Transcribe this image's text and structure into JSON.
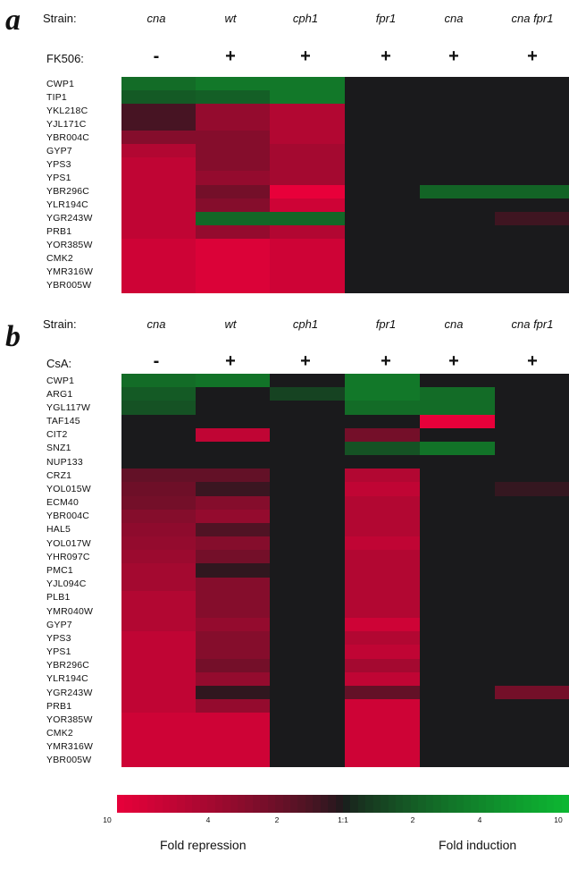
{
  "panel_a": {
    "letter": "a",
    "strain_label": "Strain:",
    "treatment_label": "FK506:",
    "strains": [
      "cna",
      "wt",
      "cph1",
      "fpr1",
      "cna",
      "cna fpr1"
    ],
    "treatments": [
      "-",
      "+",
      "+",
      "+",
      "+",
      "+"
    ],
    "genes": [
      "CWP1",
      "TIP1",
      "YKL218C",
      "YJL171C",
      "YBR004C",
      "GYP7",
      "YPS3",
      "YPS1",
      "YBR296C",
      "YLR194C",
      "YGR243W",
      "PRB1",
      "YOR385W",
      "CMK2",
      "YMR316W",
      "YBR005W"
    ],
    "values": [
      [
        2.5,
        3,
        3,
        0,
        0,
        0
      ],
      [
        1.8,
        2,
        3,
        0,
        0,
        0
      ],
      [
        -0.8,
        -3,
        -4,
        0,
        0,
        0
      ],
      [
        -0.8,
        -3,
        -4,
        0,
        0,
        0
      ],
      [
        -2.5,
        -2.5,
        -4,
        0,
        0,
        0
      ],
      [
        -4,
        -2.5,
        -3.5,
        0,
        0,
        0
      ],
      [
        -4.5,
        -2.5,
        -3.5,
        0,
        0,
        0
      ],
      [
        -4.5,
        -3,
        -3.5,
        0,
        0,
        0
      ],
      [
        -4.5,
        -2,
        -6,
        0,
        2.2,
        2.2
      ],
      [
        -4.5,
        -2.5,
        -5,
        0,
        0,
        0
      ],
      [
        -4.5,
        2.3,
        2.3,
        0,
        0,
        -0.6
      ],
      [
        -4.5,
        -3,
        -4,
        0,
        0,
        0
      ],
      [
        -5,
        -5.5,
        -5,
        0,
        0,
        0
      ],
      [
        -5,
        -5.5,
        -5,
        0,
        0,
        0
      ],
      [
        -5,
        -5.5,
        -5,
        0,
        0,
        0
      ],
      [
        -5,
        -5.5,
        -5,
        0,
        0,
        0
      ]
    ]
  },
  "panel_b": {
    "letter": "b",
    "strain_label": "Strain:",
    "treatment_label": "CsA:",
    "strains": [
      "cna",
      "wt",
      "cph1",
      "fpr1",
      "cna",
      "cna fpr1"
    ],
    "treatments": [
      "-",
      "+",
      "+",
      "+",
      "+",
      "+"
    ],
    "genes": [
      "CWP1",
      "ARG1",
      "YGL117W",
      "TAF145",
      "CIT2",
      "SNZ1",
      "NUP133",
      "CRZ1",
      "YOL015W",
      "ECM40",
      "YBR004C",
      "HAL5",
      "YOL017W",
      "YHR097C",
      "PMC1",
      "YJL094C",
      "PLB1",
      "YMR040W",
      "GYP7",
      "YPS3",
      "YPS1",
      "YBR296C",
      "YLR194C",
      "YGR243W",
      "PRB1",
      "YOR385W",
      "CMK2",
      "YMR316W",
      "YBR005W"
    ],
    "values": [
      [
        2.5,
        2.8,
        0,
        3,
        0,
        0
      ],
      [
        1.8,
        0,
        1,
        3,
        2.5,
        0
      ],
      [
        1.5,
        0,
        0,
        2.5,
        2.5,
        0
      ],
      [
        0,
        0,
        0,
        0,
        -6,
        0
      ],
      [
        0,
        -4.5,
        0,
        -2,
        0,
        0
      ],
      [
        0,
        0,
        0,
        1.5,
        2.8,
        0
      ],
      [
        0,
        0,
        0,
        0,
        0,
        0
      ],
      [
        -1.5,
        -1.5,
        0,
        -4,
        0,
        0
      ],
      [
        -1.8,
        -0.5,
        0,
        -4.5,
        0,
        -0.4
      ],
      [
        -2,
        -2.5,
        0,
        -4,
        0,
        0
      ],
      [
        -2.5,
        -3,
        0,
        -4,
        0,
        0
      ],
      [
        -2.8,
        -1,
        0,
        -4,
        0,
        0
      ],
      [
        -3,
        -2.5,
        0,
        -4.5,
        0,
        0
      ],
      [
        -3.2,
        -2,
        0,
        -4,
        0,
        0
      ],
      [
        -3.5,
        -0.3,
        0,
        -4,
        0,
        0
      ],
      [
        -3.5,
        -2.5,
        0,
        -4,
        0,
        0
      ],
      [
        -4,
        -2.5,
        0,
        -4,
        0,
        0
      ],
      [
        -4,
        -2.5,
        0,
        -4,
        0,
        0
      ],
      [
        -4,
        -3,
        0,
        -5,
        0,
        0
      ],
      [
        -4.5,
        -2.5,
        0,
        -4,
        0,
        0
      ],
      [
        -4.5,
        -2.5,
        0,
        -4.5,
        0,
        0
      ],
      [
        -4.5,
        -2,
        0,
        -3.5,
        0,
        0
      ],
      [
        -4.5,
        -3,
        0,
        -4.5,
        0,
        0
      ],
      [
        -4.5,
        -0.3,
        0,
        -1.5,
        0,
        -2
      ],
      [
        -4.5,
        -3,
        0,
        -5,
        0,
        0
      ],
      [
        -5,
        -5,
        0,
        -5,
        0,
        0
      ],
      [
        -5,
        -5,
        0,
        -5,
        0,
        0
      ],
      [
        -5,
        -5,
        0,
        -5,
        0,
        0
      ],
      [
        -5,
        -5,
        0,
        -5,
        0,
        0
      ]
    ]
  },
  "scale": {
    "ticks": [
      "10",
      "4",
      "2",
      "1:1",
      "2",
      "4",
      "10"
    ],
    "repression_label": "Fold repression",
    "induction_label": "Fold induction"
  },
  "colors": {
    "red": "#e8003a",
    "black": "#1a1a1c",
    "green": "#0cb832"
  }
}
